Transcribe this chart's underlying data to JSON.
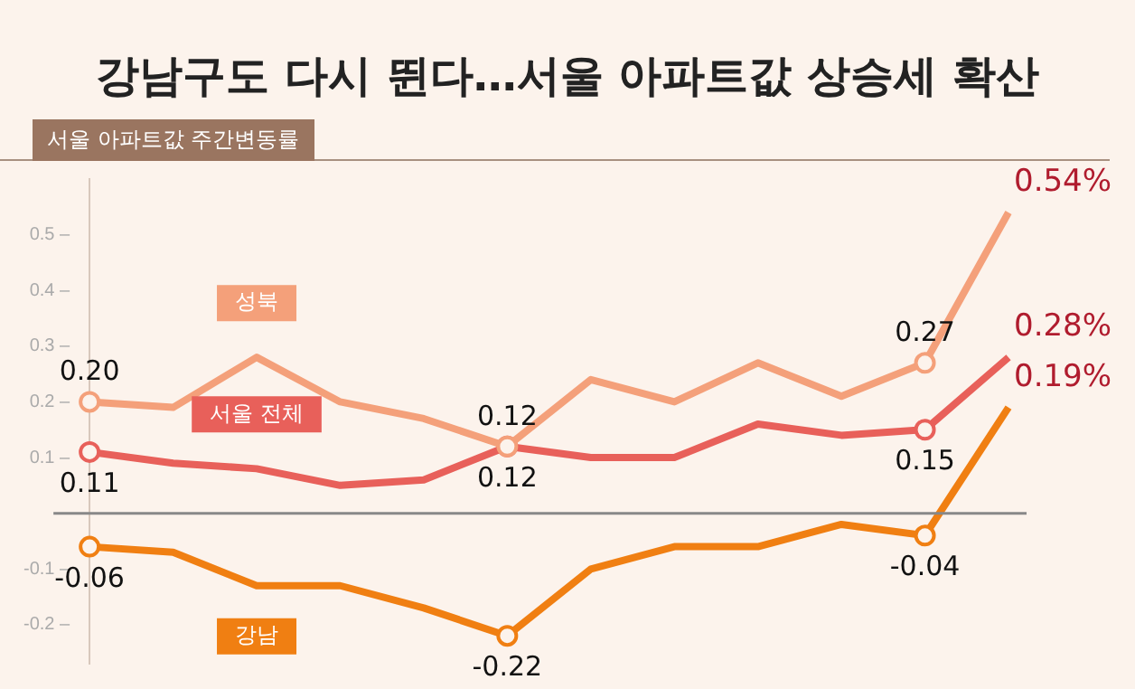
{
  "chart_data": {
    "type": "line",
    "title": "강남구도 다시 뛴다…서울 아파트값 상승세 확산",
    "ylabel": "서울 아파트값 주간변동률",
    "categories": [
      null,
      null,
      null,
      null,
      null,
      null,
      null,
      null,
      null,
      null,
      null,
      null
    ],
    "series": [
      {
        "name": "성북",
        "color": "#f4a07a",
        "values": [
          0.2,
          0.19,
          0.28,
          0.2,
          0.17,
          0.12,
          0.24,
          0.2,
          0.27,
          0.21,
          0.27,
          0.54
        ],
        "value_labels": [
          "0.20",
          null,
          null,
          null,
          null,
          "0.12",
          null,
          null,
          null,
          null,
          "0.27",
          "0.54%"
        ]
      },
      {
        "name": "서울 전체",
        "color": "#e8605a",
        "values": [
          0.11,
          0.09,
          0.08,
          0.05,
          0.06,
          0.12,
          0.1,
          0.1,
          0.16,
          0.14,
          0.15,
          0.28
        ],
        "value_labels": [
          "0.11",
          null,
          null,
          null,
          null,
          "0.12",
          null,
          null,
          null,
          null,
          "0.15",
          "0.28%"
        ]
      },
      {
        "name": "강남",
        "color": "#f07f12",
        "values": [
          -0.06,
          -0.07,
          -0.13,
          -0.13,
          -0.17,
          -0.22,
          -0.1,
          -0.06,
          -0.06,
          -0.02,
          -0.04,
          0.19
        ],
        "value_labels": [
          "-0.06",
          null,
          null,
          null,
          null,
          "-0.22",
          null,
          null,
          null,
          null,
          "-0.04",
          "0.19%"
        ]
      }
    ],
    "ylim": [
      -0.27,
      0.6
    ],
    "yticks": [
      {
        "value": -0.2,
        "label": "-0.2 –"
      },
      {
        "value": -0.1,
        "label": "-0.1 –"
      },
      {
        "value": 0.1,
        "label": "0.1 –"
      },
      {
        "value": 0.2,
        "label": "0.2 –"
      },
      {
        "value": 0.3,
        "label": "0.3 –"
      },
      {
        "value": 0.4,
        "label": "0.4 –"
      },
      {
        "value": 0.5,
        "label": "0.5 –"
      }
    ],
    "ref_lines": [
      {
        "axis": "y",
        "value": 0,
        "color": "#888888"
      }
    ],
    "grid": false,
    "legend": false,
    "line_style": "solid"
  }
}
